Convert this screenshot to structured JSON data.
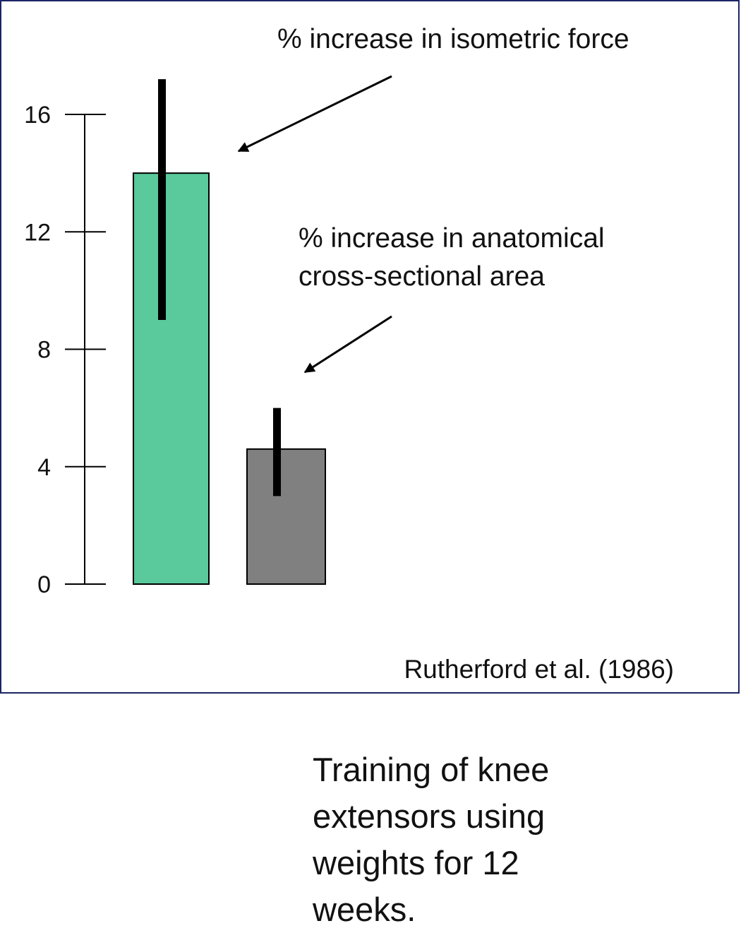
{
  "chart_data": {
    "type": "bar",
    "categories": [
      "% increase in isometric force",
      "% increase in anatomical cross-sectional area"
    ],
    "values": [
      14,
      4.6
    ],
    "error_low": [
      9,
      3
    ],
    "error_high": [
      17.2,
      6
    ],
    "bar_colors": [
      "#5ac99b",
      "#808080"
    ],
    "error_bar_color": "#000000",
    "frame_color": "#1c2566",
    "ylim": [
      0,
      16
    ],
    "yticks": [
      0,
      4,
      8,
      12,
      16
    ],
    "title": "",
    "xlabel": "",
    "ylabel": "",
    "grid": false,
    "annotations": [
      {
        "lines": [
          "% increase in isometric force"
        ],
        "points_to": 0
      },
      {
        "lines": [
          "% increase in anatomical",
          "cross-sectional area"
        ],
        "points_to": 1
      }
    ],
    "source": "Rutherford et al. (1986)"
  },
  "caption": {
    "lines": [
      "Training of knee",
      "extensors using",
      "weights for 12",
      "weeks."
    ]
  }
}
